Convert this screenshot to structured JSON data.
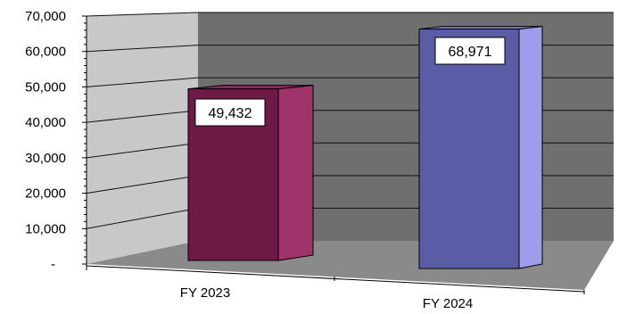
{
  "chart_data": {
    "type": "bar",
    "style": "3d-column",
    "categories": [
      "FY 2023",
      "FY 2024"
    ],
    "values": [
      49432,
      68971
    ],
    "data_labels": [
      "49,432",
      "68,971"
    ],
    "y_tick_labels": [
      "-",
      "10,000",
      "20,000",
      "30,000",
      "40,000",
      "50,000",
      "60,000",
      "70,000"
    ],
    "ylim": [
      0,
      70000
    ],
    "grid": true,
    "colors": {
      "bar_front": [
        "#6e1a47",
        "#5c5ca6"
      ],
      "bar_side": [
        "#a0336a",
        "#9d9dec"
      ],
      "bar_top": [
        "#8c2a5c",
        "#7c7cc8"
      ],
      "back_wall": "#6f6f6f",
      "side_wall": "#c8c8c8",
      "floor": "#8a8a8a",
      "gridline": "#111111"
    }
  }
}
